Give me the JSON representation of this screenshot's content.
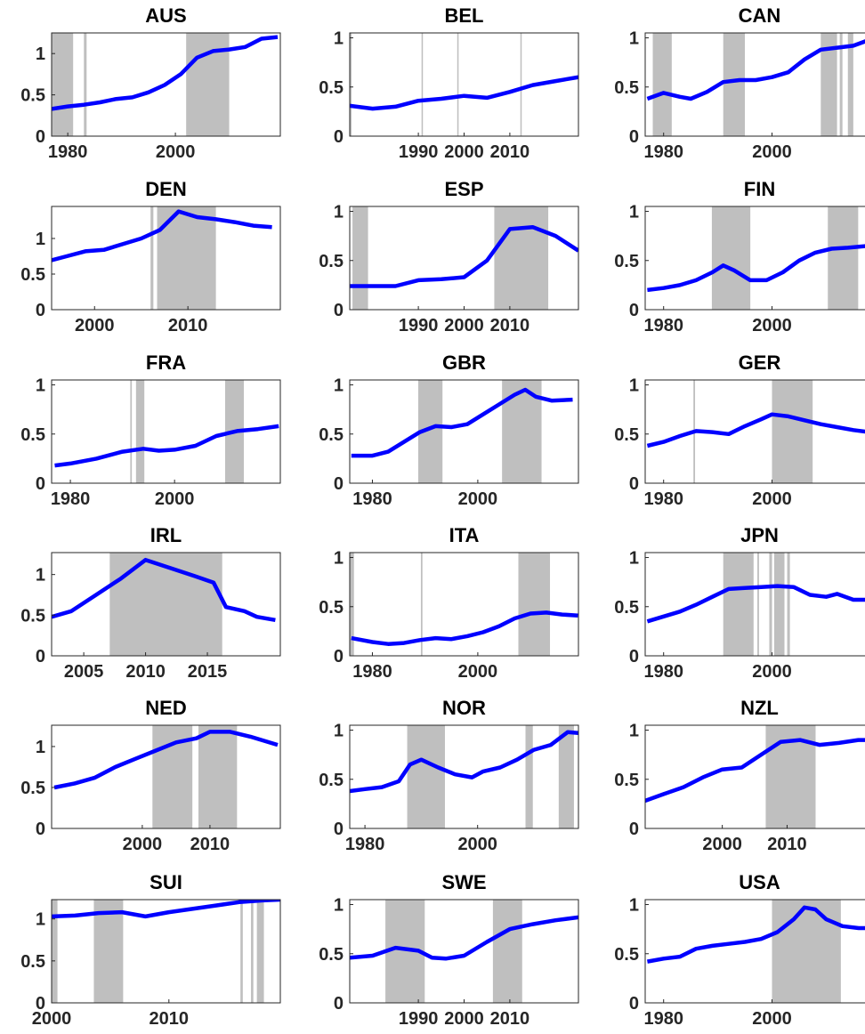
{
  "chart_data": [
    {
      "type": "line",
      "title": "AUS",
      "color": "#0000ff",
      "shade_color": "#bfbfbf",
      "xlim": [
        1977,
        2019.5
      ],
      "ylim": [
        0,
        1.25
      ],
      "xticks": [
        1980,
        2000
      ],
      "yticks": [
        0,
        0.5,
        1
      ],
      "shaded": [
        [
          1977,
          1981
        ],
        [
          1983,
          1983.5
        ],
        [
          2002,
          2010
        ]
      ],
      "x": [
        1977,
        1980,
        1983,
        1986,
        1989,
        1992,
        1995,
        1998,
        2001,
        2004,
        2007,
        2010,
        2013,
        2016,
        2019
      ],
      "values": [
        0.33,
        0.36,
        0.38,
        0.41,
        0.45,
        0.47,
        0.53,
        0.62,
        0.75,
        0.95,
        1.03,
        1.05,
        1.08,
        1.18,
        1.2
      ]
    },
    {
      "type": "line",
      "title": "BEL",
      "color": "#0000ff",
      "shade_color": "#bfbfbf",
      "xlim": [
        1975,
        2025
      ],
      "ylim": [
        0,
        1.05
      ],
      "xticks": [
        1990,
        2000,
        2010
      ],
      "yticks": [
        0,
        0.5,
        1
      ],
      "shaded": [
        [
          1975,
          1975.4
        ],
        [
          1990.7,
          1991
        ],
        [
          1998.5,
          1998.8
        ],
        [
          2012.3,
          2012.6
        ]
      ],
      "x": [
        1975,
        1980,
        1985,
        1990,
        1995,
        2000,
        2005,
        2010,
        2015,
        2020,
        2025
      ],
      "values": [
        0.31,
        0.28,
        0.3,
        0.36,
        0.38,
        0.41,
        0.39,
        0.45,
        0.52,
        0.56,
        0.6
      ]
    },
    {
      "type": "line",
      "title": "CAN",
      "color": "#0000ff",
      "shade_color": "#bfbfbf",
      "xlim": [
        1976.6,
        2018.8
      ],
      "ylim": [
        0,
        1.05
      ],
      "xticks": [
        1980,
        2000
      ],
      "yticks": [
        0,
        0.5,
        1
      ],
      "shaded": [
        [
          1978,
          1981.5
        ],
        [
          1991,
          1995
        ],
        [
          2009,
          2012
        ],
        [
          2012.5,
          2013
        ],
        [
          2014,
          2015
        ]
      ],
      "x": [
        1977,
        1980,
        1983,
        1985,
        1988,
        1991,
        1994,
        1997,
        2000,
        2003,
        2006,
        2009,
        2012,
        2015,
        2018
      ],
      "values": [
        0.38,
        0.44,
        0.4,
        0.38,
        0.45,
        0.55,
        0.57,
        0.57,
        0.6,
        0.65,
        0.78,
        0.88,
        0.9,
        0.92,
        0.98
      ]
    },
    {
      "type": "line",
      "title": "DEN",
      "color": "#0000ff",
      "shade_color": "#bfbfbf",
      "xlim": [
        1995.4,
        2019.9
      ],
      "ylim": [
        0,
        1.45
      ],
      "xticks": [
        2000,
        2010
      ],
      "yticks": [
        0,
        0.5,
        1
      ],
      "shaded": [
        [
          2006,
          2006.3
        ],
        [
          2006.7,
          2013
        ]
      ],
      "x": [
        1995,
        1997,
        1999,
        2001,
        2003,
        2005,
        2007,
        2009,
        2011,
        2013,
        2015,
        2017,
        2019
      ],
      "values": [
        0.68,
        0.75,
        0.82,
        0.84,
        0.92,
        1.0,
        1.12,
        1.38,
        1.3,
        1.27,
        1.23,
        1.18,
        1.16
      ]
    },
    {
      "type": "line",
      "title": "ESP",
      "color": "#0000ff",
      "shade_color": "#bfbfbf",
      "xlim": [
        1975,
        2025
      ],
      "ylim": [
        0,
        1.05
      ],
      "xticks": [
        1990,
        2000,
        2010
      ],
      "yticks": [
        0,
        0.5,
        1
      ],
      "shaded": [
        [
          1975.6,
          1979
        ],
        [
          2006.6,
          2018.4
        ]
      ],
      "x": [
        1975,
        1980,
        1985,
        1990,
        1995,
        2000,
        2005,
        2010,
        2015,
        2020,
        2025
      ],
      "values": [
        0.24,
        0.24,
        0.24,
        0.3,
        0.31,
        0.33,
        0.5,
        0.82,
        0.84,
        0.75,
        0.6
      ]
    },
    {
      "type": "line",
      "title": "FIN",
      "color": "#0000ff",
      "shade_color": "#bfbfbf",
      "xlim": [
        1976.6,
        2018.8
      ],
      "ylim": [
        0,
        1.05
      ],
      "xticks": [
        1980,
        2000
      ],
      "yticks": [
        0,
        0.5,
        1
      ],
      "shaded": [
        [
          1988.9,
          1996
        ],
        [
          2010.3,
          2015.9
        ]
      ],
      "x": [
        1977,
        1980,
        1983,
        1986,
        1989,
        1991,
        1993,
        1996,
        1999,
        2002,
        2005,
        2008,
        2011,
        2014,
        2018
      ],
      "values": [
        0.2,
        0.22,
        0.25,
        0.3,
        0.38,
        0.45,
        0.4,
        0.3,
        0.3,
        0.38,
        0.5,
        0.58,
        0.62,
        0.63,
        0.65
      ]
    },
    {
      "type": "line",
      "title": "FRA",
      "color": "#0000ff",
      "shade_color": "#bfbfbf",
      "xlim": [
        1976.4,
        2020.3
      ],
      "ylim": [
        0,
        1.05
      ],
      "xticks": [
        1980,
        2000
      ],
      "yticks": [
        0,
        0.5,
        1
      ],
      "shaded": [
        [
          1991.5,
          1991.8
        ],
        [
          1992.6,
          1994.2
        ],
        [
          2009.7,
          2013.3
        ]
      ],
      "x": [
        1977,
        1980,
        1985,
        1990,
        1994,
        1997,
        2000,
        2004,
        2008,
        2012,
        2016,
        2020
      ],
      "values": [
        0.18,
        0.2,
        0.25,
        0.32,
        0.35,
        0.33,
        0.34,
        0.38,
        0.48,
        0.53,
        0.55,
        0.58
      ]
    },
    {
      "type": "line",
      "title": "GBR",
      "color": "#0000ff",
      "shade_color": "#bfbfbf",
      "xlim": [
        1975.7,
        2019.1
      ],
      "ylim": [
        0,
        1.05
      ],
      "xticks": [
        1980,
        2000
      ],
      "yticks": [
        0,
        0.5,
        1
      ],
      "shaded": [
        [
          1988.7,
          1993.3
        ],
        [
          2004.6,
          2012.1
        ]
      ],
      "x": [
        1976,
        1980,
        1983,
        1986,
        1989,
        1992,
        1995,
        1998,
        2001,
        2004,
        2007,
        2009,
        2011,
        2014,
        2018
      ],
      "values": [
        0.28,
        0.28,
        0.32,
        0.42,
        0.52,
        0.58,
        0.57,
        0.6,
        0.7,
        0.8,
        0.9,
        0.95,
        0.88,
        0.84,
        0.85
      ]
    },
    {
      "type": "line",
      "title": "GER",
      "color": "#0000ff",
      "shade_color": "#bfbfbf",
      "xlim": [
        1976.6,
        2018.8
      ],
      "ylim": [
        0,
        1.05
      ],
      "xticks": [
        1980,
        2000
      ],
      "yticks": [
        0,
        0.5,
        1
      ],
      "shaded": [
        [
          1985.5,
          1985.8
        ],
        [
          2000,
          2007.5
        ]
      ],
      "x": [
        1977,
        1980,
        1983,
        1986,
        1989,
        1992,
        1995,
        1998,
        2000,
        2003,
        2006,
        2009,
        2012,
        2015,
        2018
      ],
      "values": [
        0.38,
        0.42,
        0.48,
        0.53,
        0.52,
        0.5,
        0.58,
        0.65,
        0.7,
        0.68,
        0.64,
        0.6,
        0.57,
        0.54,
        0.52
      ]
    },
    {
      "type": "line",
      "title": "IRL",
      "color": "#0000ff",
      "shade_color": "#bfbfbf",
      "xlim": [
        2002.4,
        2020.9
      ],
      "ylim": [
        0,
        1.27
      ],
      "xticks": [
        2005,
        2010,
        2015
      ],
      "yticks": [
        0,
        0.5,
        1
      ],
      "shaded": [
        [
          2007.1,
          2016.2
        ]
      ],
      "x": [
        2002.4,
        2004,
        2006,
        2008,
        2010,
        2012,
        2014,
        2015.5,
        2016.5,
        2018,
        2019,
        2020.5
      ],
      "values": [
        0.48,
        0.55,
        0.75,
        0.95,
        1.18,
        1.08,
        0.98,
        0.9,
        0.6,
        0.55,
        0.48,
        0.44
      ]
    },
    {
      "type": "line",
      "title": "ITA",
      "color": "#0000ff",
      "shade_color": "#bfbfbf",
      "xlim": [
        1975.7,
        2019.1
      ],
      "ylim": [
        0,
        1.05
      ],
      "xticks": [
        1980,
        2000
      ],
      "yticks": [
        0,
        0.5,
        1
      ],
      "shaded": [
        [
          1975.7,
          1976.5
        ],
        [
          1989.2,
          1989.5
        ],
        [
          2007.7,
          2013.7
        ]
      ],
      "x": [
        1976,
        1980,
        1983,
        1986,
        1989,
        1992,
        1995,
        1998,
        2001,
        2004,
        2007,
        2010,
        2013,
        2016,
        2019
      ],
      "values": [
        0.18,
        0.14,
        0.12,
        0.13,
        0.16,
        0.18,
        0.17,
        0.2,
        0.24,
        0.3,
        0.38,
        0.43,
        0.44,
        0.42,
        0.41
      ]
    },
    {
      "type": "line",
      "title": "JPN",
      "color": "#0000ff",
      "shade_color": "#bfbfbf",
      "xlim": [
        1976.6,
        2018.8
      ],
      "ylim": [
        0,
        1.05
      ],
      "xticks": [
        1980,
        2000
      ],
      "yticks": [
        0,
        0.5,
        1
      ],
      "shaded": [
        [
          1991,
          1996.6
        ],
        [
          1997.3,
          1997.6
        ],
        [
          1999.5,
          2000
        ],
        [
          2000.4,
          2002.3
        ],
        [
          2002.8,
          2003.3
        ]
      ],
      "x": [
        1977,
        1980,
        1983,
        1986,
        1989,
        1992,
        1995,
        1998,
        2001,
        2004,
        2007,
        2010,
        2012,
        2015,
        2018
      ],
      "values": [
        0.35,
        0.4,
        0.45,
        0.52,
        0.6,
        0.68,
        0.69,
        0.7,
        0.71,
        0.7,
        0.62,
        0.6,
        0.63,
        0.57,
        0.57
      ]
    },
    {
      "type": "line",
      "title": "NED",
      "color": "#0000ff",
      "shade_color": "#bfbfbf",
      "xlim": [
        1986.6,
        2020.4
      ],
      "ylim": [
        0,
        1.26
      ],
      "xticks": [
        2000,
        2010
      ],
      "yticks": [
        0,
        0.5,
        1
      ],
      "shaded": [
        [
          2001.5,
          2007.4
        ],
        [
          2008.3,
          2014
        ]
      ],
      "x": [
        1987,
        1990,
        1993,
        1996,
        1999,
        2002,
        2005,
        2008,
        2010,
        2013,
        2016,
        2020
      ],
      "values": [
        0.5,
        0.55,
        0.62,
        0.75,
        0.85,
        0.95,
        1.05,
        1.1,
        1.18,
        1.18,
        1.12,
        1.02
      ]
    },
    {
      "type": "line",
      "title": "NOR",
      "color": "#0000ff",
      "shade_color": "#bfbfbf",
      "xlim": [
        1977.3,
        2017.9
      ],
      "ylim": [
        0,
        1.05
      ],
      "xticks": [
        1980,
        2000
      ],
      "yticks": [
        0,
        0.5,
        1
      ],
      "shaded": [
        [
          1987.5,
          1994.2
        ],
        [
          2008.5,
          2009.8
        ],
        [
          2014.4,
          2017.1
        ]
      ],
      "x": [
        1977.3,
        1980,
        1983,
        1986,
        1988,
        1990,
        1993,
        1996,
        1999,
        2001,
        2004,
        2007,
        2010,
        2013,
        2016,
        2017.9
      ],
      "values": [
        0.38,
        0.4,
        0.42,
        0.48,
        0.65,
        0.7,
        0.62,
        0.55,
        0.52,
        0.58,
        0.62,
        0.7,
        0.8,
        0.85,
        0.98,
        0.97
      ]
    },
    {
      "type": "line",
      "title": "NZL",
      "color": "#0000ff",
      "shade_color": "#bfbfbf",
      "xlim": [
        1988.1,
        2023.4
      ],
      "ylim": [
        0,
        1.05
      ],
      "xticks": [
        2000,
        2010
      ],
      "yticks": [
        0,
        0.5,
        1
      ],
      "shaded": [
        [
          2006.7,
          2014.4
        ]
      ],
      "x": [
        1988,
        1991,
        1994,
        1997,
        2000,
        2003,
        2006,
        2009,
        2012,
        2015,
        2018,
        2021,
        2023
      ],
      "values": [
        0.28,
        0.35,
        0.42,
        0.52,
        0.6,
        0.62,
        0.75,
        0.88,
        0.9,
        0.85,
        0.87,
        0.9,
        0.9
      ]
    },
    {
      "type": "line",
      "title": "SUI",
      "color": "#0000ff",
      "shade_color": "#bfbfbf",
      "xlim": [
        2000,
        2019.5
      ],
      "ylim": [
        0,
        1.23
      ],
      "xticks": [
        2000,
        2010
      ],
      "yticks": [
        0,
        0.5,
        1
      ],
      "shaded": [
        [
          2000,
          2000.5
        ],
        [
          2003.6,
          2006.1
        ],
        [
          2016.1,
          2016.3
        ],
        [
          2017,
          2017.2
        ],
        [
          2017.5,
          2018.1
        ]
      ],
      "x": [
        2000,
        2002,
        2004,
        2006,
        2008,
        2010,
        2012,
        2014,
        2016,
        2018,
        2019.5
      ],
      "values": [
        1.03,
        1.04,
        1.07,
        1.08,
        1.03,
        1.08,
        1.12,
        1.16,
        1.2,
        1.22,
        1.23
      ]
    },
    {
      "type": "line",
      "title": "SWE",
      "color": "#0000ff",
      "shade_color": "#bfbfbf",
      "xlim": [
        1975,
        2025
      ],
      "ylim": [
        0,
        1.05
      ],
      "xticks": [
        1990,
        2000,
        2010
      ],
      "yticks": [
        0,
        0.5,
        1
      ],
      "shaded": [
        [
          1982.8,
          1991.4
        ],
        [
          2006.3,
          2012.7
        ]
      ],
      "x": [
        1975,
        1980,
        1985,
        1990,
        1993,
        1996,
        2000,
        2005,
        2010,
        2015,
        2020,
        2025
      ],
      "values": [
        0.46,
        0.48,
        0.56,
        0.53,
        0.46,
        0.45,
        0.48,
        0.62,
        0.75,
        0.8,
        0.84,
        0.87
      ]
    },
    {
      "type": "line",
      "title": "USA",
      "color": "#0000ff",
      "shade_color": "#bfbfbf",
      "xlim": [
        1976.6,
        2018.8
      ],
      "ylim": [
        0,
        1.05
      ],
      "xticks": [
        1980,
        2000
      ],
      "yticks": [
        0,
        0.5,
        1
      ],
      "shaded": [
        [
          2000,
          2012.7
        ]
      ],
      "x": [
        1977,
        1980,
        1983,
        1986,
        1989,
        1992,
        1995,
        1998,
        2001,
        2004,
        2006,
        2008,
        2010,
        2013,
        2016,
        2018
      ],
      "values": [
        0.42,
        0.45,
        0.47,
        0.55,
        0.58,
        0.6,
        0.62,
        0.65,
        0.72,
        0.85,
        0.97,
        0.95,
        0.85,
        0.78,
        0.76,
        0.76
      ]
    }
  ]
}
